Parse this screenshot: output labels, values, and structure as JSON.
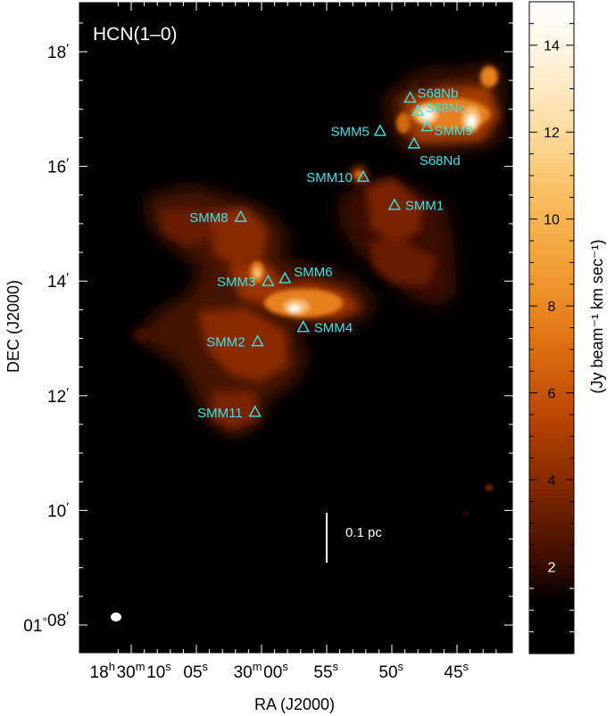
{
  "chart_data": {
    "type": "heatmap",
    "panel_label": "HCN(1–0)",
    "xlabel": "RA (J2000)",
    "ylabel": "DEC (J2000)",
    "colorbar_label": "(Jy beam⁻¹ km sec⁻¹)",
    "colorbar_range": [
      0,
      15
    ],
    "colorbar_ticks": [
      "2",
      "4",
      "6",
      "8",
      "10",
      "12",
      "14"
    ],
    "colormap": [
      "#000000",
      "#2a0700",
      "#7a2400",
      "#c24d00",
      "#e8801a",
      "#f7b24a",
      "#fde2b0",
      "#ffffff"
    ],
    "x_ticks": [
      {
        "ra_s": 70,
        "h": "18",
        "m": "30",
        "s": "10"
      },
      {
        "ra_s": 65,
        "s": "05"
      },
      {
        "ra_s": 60,
        "m": "30",
        "s": "00"
      },
      {
        "ra_s": 55,
        "s": "55"
      },
      {
        "ra_s": 50,
        "s": "50"
      },
      {
        "ra_s": 45,
        "s": "45"
      }
    ],
    "y_ticks": [
      {
        "dec_min": 8,
        "d": "01",
        "m": "08"
      },
      {
        "dec_min": 10,
        "m": "10"
      },
      {
        "dec_min": 12,
        "m": "12"
      },
      {
        "dec_min": 14,
        "m": "14"
      },
      {
        "dec_min": 16,
        "m": "16"
      },
      {
        "dec_min": 18,
        "m": "18"
      }
    ],
    "scale_bar_label": "0.1 pc",
    "sources": [
      {
        "name": "S68Nb",
        "ra_s": 48.6,
        "dec_min": 17.2
      },
      {
        "name": "S68Nc",
        "ra_s": 48.0,
        "dec_min": 16.97
      },
      {
        "name": "S68Nd",
        "ra_s": 48.3,
        "dec_min": 16.4
      },
      {
        "name": "SMM9",
        "ra_s": 47.3,
        "dec_min": 16.7
      },
      {
        "name": "SMM5",
        "ra_s": 50.9,
        "dec_min": 16.62
      },
      {
        "name": "SMM10",
        "ra_s": 52.2,
        "dec_min": 15.82
      },
      {
        "name": "SMM1",
        "ra_s": 49.8,
        "dec_min": 15.33
      },
      {
        "name": "SMM8",
        "ra_s": 61.6,
        "dec_min": 15.12
      },
      {
        "name": "SMM3",
        "ra_s": 59.5,
        "dec_min": 14.0
      },
      {
        "name": "SMM6",
        "ra_s": 58.2,
        "dec_min": 14.05
      },
      {
        "name": "SMM4",
        "ra_s": 56.8,
        "dec_min": 13.2
      },
      {
        "name": "SMM2",
        "ra_s": 60.3,
        "dec_min": 12.95
      },
      {
        "name": "SMM11",
        "ra_s": 60.5,
        "dec_min": 11.72
      }
    ]
  }
}
